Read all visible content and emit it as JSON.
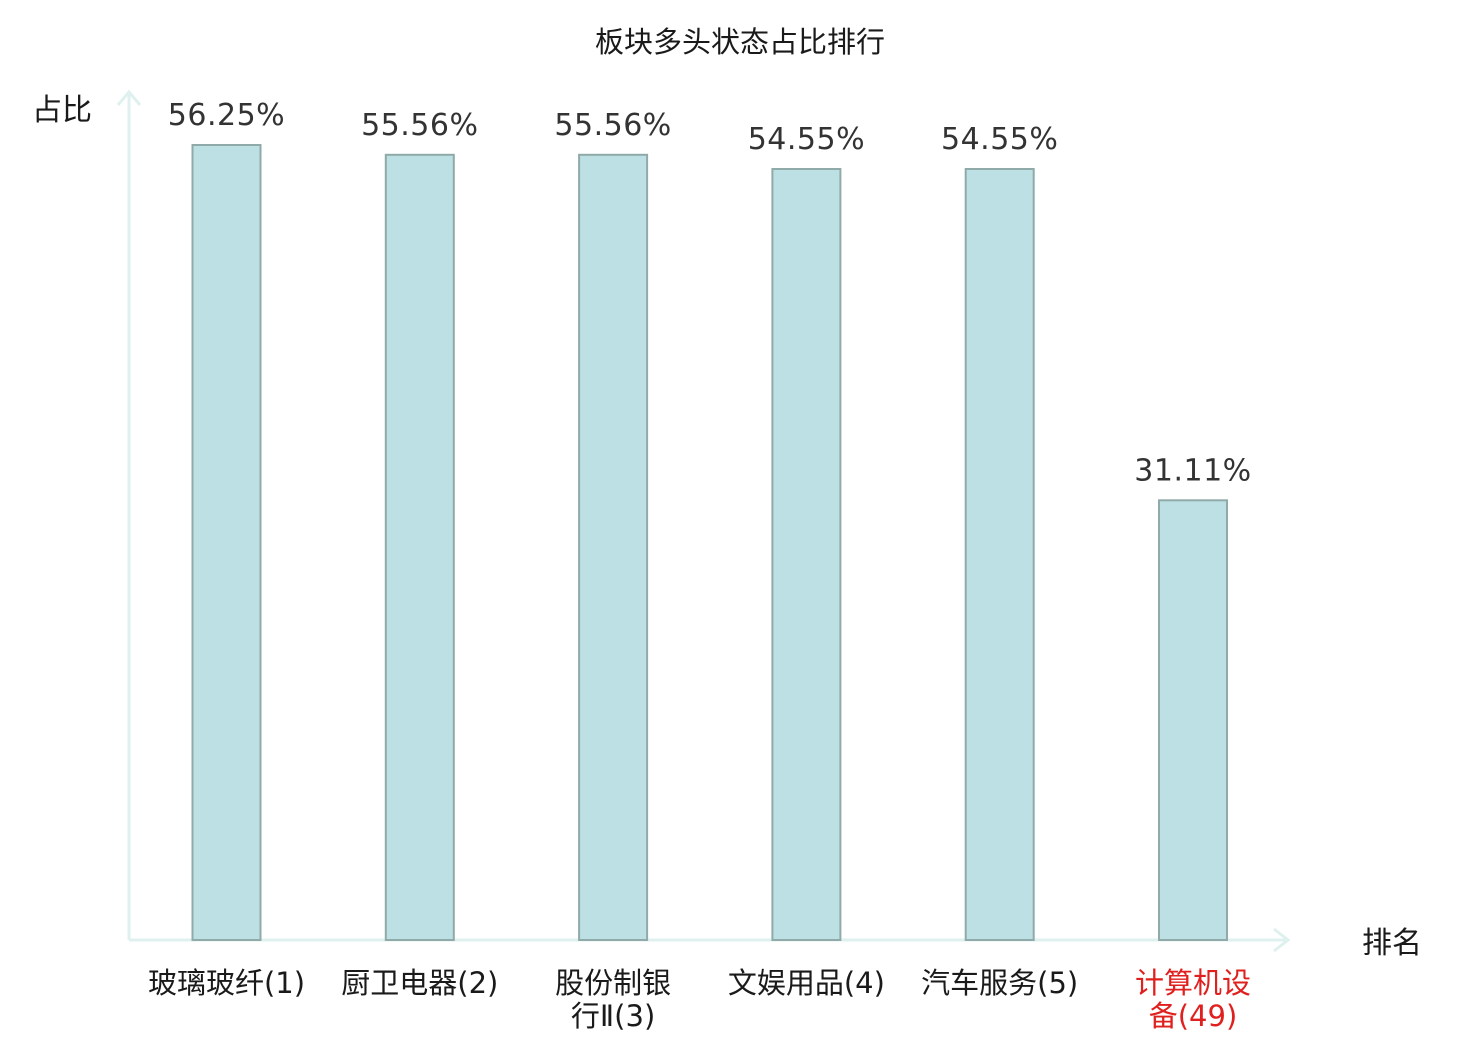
{
  "chart_data": {
    "type": "bar",
    "title": "板块多头状态占比排行",
    "ylabel": "占比",
    "xlabel": "排名",
    "categories": [
      [
        "玻璃玻纤(1)"
      ],
      [
        "厨卫电器(2)"
      ],
      [
        "股份制银",
        "行Ⅱ(3)"
      ],
      [
        "文娱用品(4)"
      ],
      [
        "汽车服务(5)"
      ],
      [
        "计算机设",
        "备(49)"
      ]
    ],
    "values": [
      56.25,
      55.56,
      55.56,
      54.55,
      54.55,
      31.11
    ],
    "value_labels": [
      "56.25%",
      "55.56%",
      "55.56%",
      "54.55%",
      "54.55%",
      "31.11%"
    ],
    "highlight_index": 5,
    "grid": false,
    "legend": "none"
  },
  "colors": {
    "bar_fill": "#bce0e3",
    "bar_stroke": "#8faaa9",
    "axis": "#dff1ef",
    "highlight_text": "#e0201e",
    "text": "#1a1a1a",
    "value_text": "#333333"
  }
}
